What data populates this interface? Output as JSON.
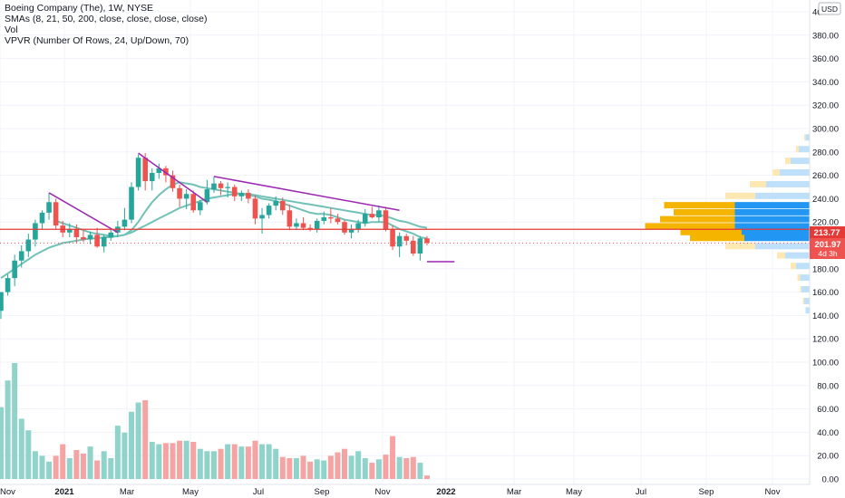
{
  "header": {
    "title": "Boeing Company (The), 1W, NYSE",
    "indicators": [
      "SMAs (8, 21, 50, 200, close, close, close, close)",
      "Vol",
      "VPVR (Number Of Rows, 24, Up/Down, 70)"
    ]
  },
  "price_axis": {
    "currency": "USD",
    "ticks": [
      "400.00",
      "380.00",
      "360.00",
      "340.00",
      "320.00",
      "300.00",
      "280.00",
      "260.00",
      "240.00",
      "220.00",
      "200.00",
      "180.00",
      "160.00",
      "140.00",
      "120.00",
      "100.00",
      "80.00",
      "60.00",
      "40.00",
      "20.00",
      "0.00"
    ],
    "current_price": "201.97",
    "countdown": "4d 3h",
    "level_price": "213.77"
  },
  "time_axis": {
    "labels": [
      "Nov",
      "2021",
      "Mar",
      "May",
      "Jul",
      "Sep",
      "Nov",
      "2022",
      "Mar",
      "May",
      "Jul",
      "Sep",
      "Nov"
    ]
  },
  "colors": {
    "up": "#26a69a",
    "down": "#ef5350",
    "vol_up": "#8fd3cb",
    "vol_down": "#f5a3a3",
    "sma": "#72c1b7",
    "trendline": "#9c27b0",
    "level": "#e53935",
    "vp_up": "#2196f3",
    "vp_down": "#f5b400",
    "vp_up_light": "#bfe0fa",
    "vp_down_light": "#fde7b3",
    "grid": "#f0f3fa"
  },
  "chart_data": {
    "type": "candlestick",
    "symbol": "BA",
    "interval": "1W",
    "exchange": "NYSE",
    "price_range": [
      0,
      400
    ],
    "candles": [
      {
        "o": 144,
        "h": 160,
        "l": 137,
        "c": 160
      },
      {
        "o": 160,
        "h": 175,
        "l": 157,
        "c": 172
      },
      {
        "o": 172,
        "h": 192,
        "l": 165,
        "c": 187
      },
      {
        "o": 187,
        "h": 200,
        "l": 181,
        "c": 195
      },
      {
        "o": 195,
        "h": 210,
        "l": 190,
        "c": 205
      },
      {
        "o": 205,
        "h": 222,
        "l": 199,
        "c": 219
      },
      {
        "o": 219,
        "h": 230,
        "l": 214,
        "c": 228
      },
      {
        "o": 228,
        "h": 245,
        "l": 222,
        "c": 237
      },
      {
        "o": 237,
        "h": 240,
        "l": 214,
        "c": 217
      },
      {
        "o": 217,
        "h": 221,
        "l": 207,
        "c": 211
      },
      {
        "o": 211,
        "h": 219,
        "l": 207,
        "c": 214
      },
      {
        "o": 214,
        "h": 218,
        "l": 202,
        "c": 207
      },
      {
        "o": 207,
        "h": 213,
        "l": 203,
        "c": 205
      },
      {
        "o": 205,
        "h": 212,
        "l": 201,
        "c": 209
      },
      {
        "o": 209,
        "h": 215,
        "l": 198,
        "c": 199
      },
      {
        "o": 199,
        "h": 209,
        "l": 194,
        "c": 207
      },
      {
        "o": 207,
        "h": 214,
        "l": 204,
        "c": 211
      },
      {
        "o": 211,
        "h": 221,
        "l": 207,
        "c": 216
      },
      {
        "o": 216,
        "h": 232,
        "l": 213,
        "c": 222
      },
      {
        "o": 222,
        "h": 254,
        "l": 219,
        "c": 250
      },
      {
        "o": 250,
        "h": 278,
        "l": 247,
        "c": 275
      },
      {
        "o": 275,
        "h": 279,
        "l": 247,
        "c": 255
      },
      {
        "o": 255,
        "h": 266,
        "l": 247,
        "c": 262
      },
      {
        "o": 262,
        "h": 270,
        "l": 257,
        "c": 266
      },
      {
        "o": 266,
        "h": 268,
        "l": 254,
        "c": 260
      },
      {
        "o": 260,
        "h": 264,
        "l": 246,
        "c": 249
      },
      {
        "o": 249,
        "h": 252,
        "l": 233,
        "c": 240
      },
      {
        "o": 240,
        "h": 248,
        "l": 231,
        "c": 244
      },
      {
        "o": 244,
        "h": 247,
        "l": 228,
        "c": 230
      },
      {
        "o": 230,
        "h": 239,
        "l": 226,
        "c": 237
      },
      {
        "o": 237,
        "h": 256,
        "l": 235,
        "c": 248
      },
      {
        "o": 248,
        "h": 259,
        "l": 245,
        "c": 253
      },
      {
        "o": 253,
        "h": 255,
        "l": 243,
        "c": 249
      },
      {
        "o": 249,
        "h": 254,
        "l": 241,
        "c": 250
      },
      {
        "o": 250,
        "h": 252,
        "l": 238,
        "c": 242
      },
      {
        "o": 242,
        "h": 247,
        "l": 238,
        "c": 245
      },
      {
        "o": 245,
        "h": 248,
        "l": 236,
        "c": 240
      },
      {
        "o": 240,
        "h": 243,
        "l": 218,
        "c": 223
      },
      {
        "o": 223,
        "h": 232,
        "l": 210,
        "c": 226
      },
      {
        "o": 226,
        "h": 236,
        "l": 223,
        "c": 234
      },
      {
        "o": 234,
        "h": 242,
        "l": 230,
        "c": 238
      },
      {
        "o": 238,
        "h": 241,
        "l": 226,
        "c": 230
      },
      {
        "o": 230,
        "h": 235,
        "l": 213,
        "c": 216
      },
      {
        "o": 216,
        "h": 223,
        "l": 213,
        "c": 219
      },
      {
        "o": 219,
        "h": 224,
        "l": 213,
        "c": 215
      },
      {
        "o": 215,
        "h": 218,
        "l": 212,
        "c": 214
      },
      {
        "o": 214,
        "h": 223,
        "l": 211,
        "c": 221
      },
      {
        "o": 221,
        "h": 229,
        "l": 218,
        "c": 224
      },
      {
        "o": 224,
        "h": 232,
        "l": 219,
        "c": 223
      },
      {
        "o": 223,
        "h": 227,
        "l": 218,
        "c": 220
      },
      {
        "o": 220,
        "h": 222,
        "l": 209,
        "c": 211
      },
      {
        "o": 211,
        "h": 218,
        "l": 206,
        "c": 214
      },
      {
        "o": 214,
        "h": 222,
        "l": 211,
        "c": 219
      },
      {
        "o": 219,
        "h": 231,
        "l": 216,
        "c": 227
      },
      {
        "o": 227,
        "h": 233,
        "l": 223,
        "c": 224
      },
      {
        "o": 224,
        "h": 234,
        "l": 220,
        "c": 230
      },
      {
        "o": 230,
        "h": 233,
        "l": 212,
        "c": 214
      },
      {
        "o": 214,
        "h": 217,
        "l": 196,
        "c": 199
      },
      {
        "o": 199,
        "h": 211,
        "l": 190,
        "c": 208
      },
      {
        "o": 208,
        "h": 210,
        "l": 200,
        "c": 204
      },
      {
        "o": 204,
        "h": 208,
        "l": 191,
        "c": 193
      },
      {
        "o": 193,
        "h": 208,
        "l": 187,
        "c": 206
      },
      {
        "o": 206,
        "h": 208,
        "l": 200,
        "c": 202
      }
    ],
    "volume": [
      62,
      85,
      100,
      52,
      42,
      24,
      20,
      15,
      20,
      30,
      18,
      25,
      22,
      28,
      16,
      24,
      18,
      46,
      40,
      58,
      66,
      68,
      32,
      30,
      31,
      31,
      33,
      33,
      32,
      26,
      24,
      24,
      26,
      30,
      30,
      28,
      28,
      33,
      30,
      30,
      26,
      19,
      18,
      18,
      20,
      15,
      17,
      16,
      20,
      23,
      26,
      20,
      24,
      18,
      14,
      17,
      21,
      37,
      19,
      18,
      19,
      14,
      3
    ],
    "sma_fast": [
      null,
      null,
      null,
      null,
      null,
      null,
      null,
      null,
      221,
      219,
      217,
      215,
      213,
      211,
      210,
      209,
      208,
      208,
      209,
      213,
      220,
      229,
      237,
      243,
      248,
      252,
      254,
      253,
      252,
      250,
      249,
      248,
      247,
      246,
      245,
      244,
      243,
      242,
      240,
      239,
      238,
      236,
      234,
      232,
      230,
      228,
      227,
      227,
      226,
      224,
      222,
      221,
      220,
      219,
      220,
      220,
      220,
      217,
      214,
      212,
      210,
      207,
      206
    ],
    "sma_slow": [
      172,
      176,
      180,
      184,
      188,
      192,
      195,
      198,
      200,
      202,
      203,
      204,
      205,
      206,
      206,
      207,
      207,
      208,
      209,
      211,
      214,
      217,
      220,
      223,
      226,
      229,
      232,
      234,
      236,
      238,
      240,
      241,
      242,
      243,
      244,
      244,
      244,
      243,
      242,
      241,
      240,
      239,
      238,
      237,
      236,
      235,
      234,
      233,
      232,
      231,
      230,
      229,
      228,
      227,
      226,
      226,
      225,
      223,
      221,
      220,
      218,
      216,
      215
    ],
    "trendlines": [
      {
        "from": [
          7,
          245
        ],
        "to": [
          17,
          211
        ]
      },
      {
        "from": [
          20,
          279
        ],
        "to": [
          30,
          237
        ]
      },
      {
        "from": [
          31,
          259
        ],
        "to": [
          58,
          230
        ]
      },
      {
        "from": [
          62,
          186
        ],
        "to": [
          66,
          186
        ]
      }
    ],
    "horizontal_level": 213.77,
    "volume_profile": [
      {
        "price": 292,
        "up": 0.03,
        "down": 0.01,
        "hl": false
      },
      {
        "price": 282,
        "up": 0.08,
        "down": 0.02,
        "hl": false
      },
      {
        "price": 272,
        "up": 0.14,
        "down": 0.04,
        "hl": false
      },
      {
        "price": 262,
        "up": 0.22,
        "down": 0.05,
        "hl": false
      },
      {
        "price": 252,
        "up": 0.32,
        "down": 0.12,
        "hl": false
      },
      {
        "price": 242,
        "up": 0.4,
        "down": 0.22,
        "hl": false
      },
      {
        "price": 234,
        "up": 0.55,
        "down": 0.52,
        "hl": true
      },
      {
        "price": 228,
        "up": 0.55,
        "down": 0.45,
        "hl": true
      },
      {
        "price": 222,
        "up": 0.55,
        "down": 0.55,
        "hl": true
      },
      {
        "price": 216,
        "up": 0.55,
        "down": 0.66,
        "hl": true
      },
      {
        "price": 211,
        "up": 0.5,
        "down": 0.45,
        "hl": true
      },
      {
        "price": 206,
        "up": 0.48,
        "down": 0.4,
        "hl": true
      },
      {
        "price": 199,
        "up": 0.4,
        "down": 0.22,
        "hl": false
      },
      {
        "price": 191,
        "up": 0.18,
        "down": 0.06,
        "hl": false
      },
      {
        "price": 182,
        "up": 0.1,
        "down": 0.04,
        "hl": false
      },
      {
        "price": 172,
        "up": 0.07,
        "down": 0.02,
        "hl": false
      },
      {
        "price": 162,
        "up": 0.06,
        "down": 0.01,
        "hl": false
      },
      {
        "price": 152,
        "up": 0.04,
        "down": 0.01,
        "hl": false
      },
      {
        "price": 144,
        "up": 0.03,
        "down": 0.0,
        "hl": false
      }
    ]
  }
}
